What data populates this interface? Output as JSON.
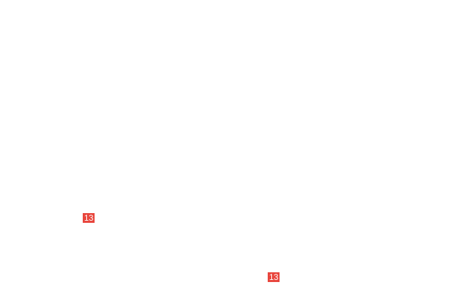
{
  "badges": [
    {
      "label": "13"
    },
    {
      "label": "13"
    }
  ],
  "colors": {
    "badge_bg": "#e8453c",
    "badge_text": "#ffffff",
    "background": "#ffffff"
  }
}
